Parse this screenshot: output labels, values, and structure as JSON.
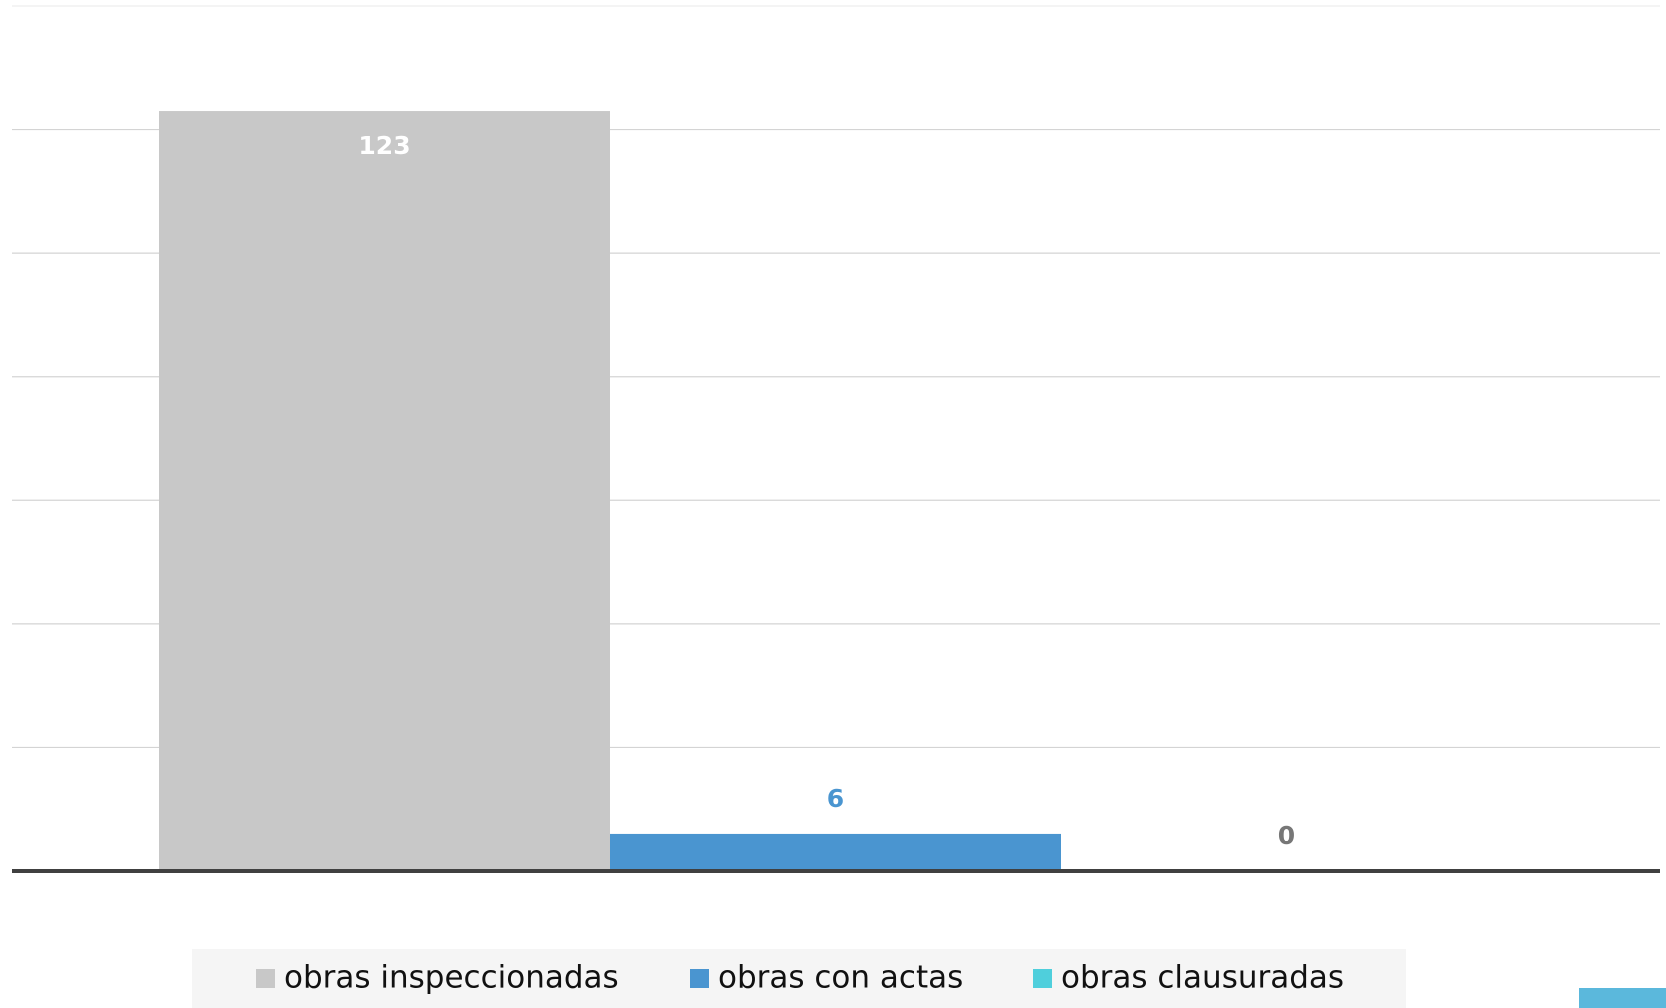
{
  "chart_data": {
    "type": "bar",
    "categories": [
      null
    ],
    "series": [
      {
        "name": "obras inspeccionadas",
        "color": "#c8c8c8",
        "label_color": "#ffffff",
        "values": [
          123
        ]
      },
      {
        "name": "obras con actas",
        "color": "#4a95d0",
        "label_color": "#4a95d0",
        "values": [
          6
        ]
      },
      {
        "name": "obras clausuradas",
        "color": "#4fcfdc",
        "label_color": "#777777",
        "values": [
          0
        ]
      }
    ],
    "ylim": [
      0,
      140
    ],
    "yticks": [
      0,
      20,
      40,
      60,
      80,
      100,
      120,
      140
    ],
    "grid": true,
    "legend": "bottom"
  }
}
